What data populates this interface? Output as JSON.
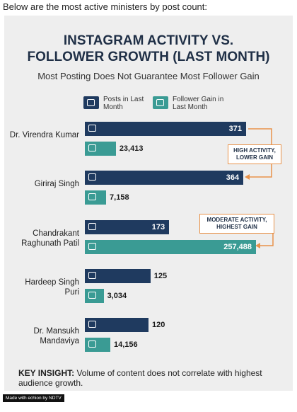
{
  "caption": "Below are the most active ministers by post count:",
  "chart_data": {
    "type": "bar",
    "title": [
      "INSTAGRAM ACTIVITY VS.",
      "FOLLOWER GROWTH (LAST MONTH)"
    ],
    "subtitle": "Most Posting Does Not Guarantee Most Follower Gain",
    "categories": [
      "Dr. Virendra Kumar",
      "Giriraj Singh",
      "Chandrakant Raghunath Patil",
      "Hardeep Singh Puri",
      "Dr. Mansukh Mandaviya"
    ],
    "series": [
      {
        "name": "Posts in Last Month",
        "color": "#1f3a5f",
        "values": [
          371,
          364,
          173,
          125,
          120
        ]
      },
      {
        "name": "Follower Gain in Last Month",
        "color": "#3a9b94",
        "values": [
          23413,
          7158,
          257488,
          3034,
          14156
        ],
        "value_labels": [
          "23,413",
          "7,158",
          "257,488",
          "3,034",
          "14,156"
        ]
      }
    ],
    "annotations": [
      "HIGH ACTIVITY, LOWER GAIN",
      "MODERATE ACTIVITY, HIGHEST GAIN"
    ],
    "key_insight": {
      "label": "KEY INSIGHT:",
      "text": "Volume of content does not correlate with highest audience growth."
    }
  },
  "footer": "Made with echion by NDTV"
}
